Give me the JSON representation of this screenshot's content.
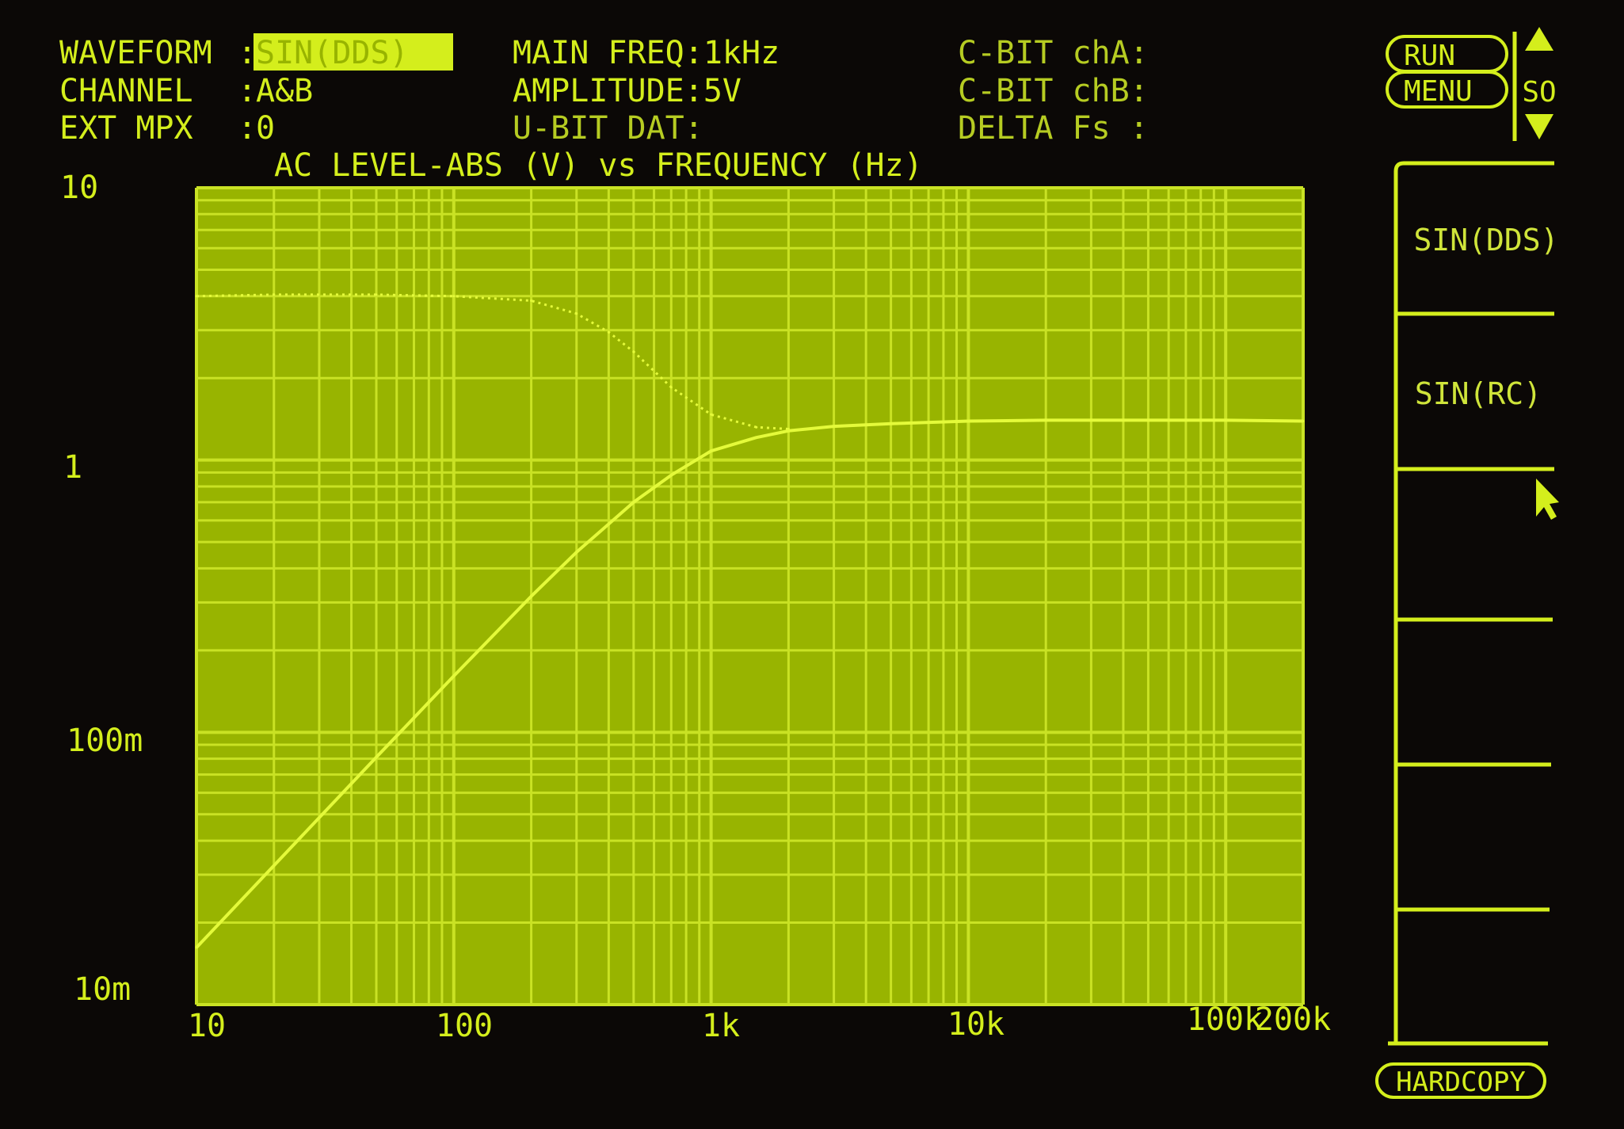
{
  "header": {
    "rows": [
      {
        "label": "WAVEFORM",
        "value": "SIN(DDS)"
      },
      {
        "label": "CHANNEL",
        "value": "A&B"
      },
      {
        "label": "EXT MPX",
        "value": "0"
      }
    ],
    "sep": ":",
    "middle": [
      "MAIN FREQ:1kHz",
      "AMPLITUDE:5V",
      "U-BIT DAT:"
    ],
    "right": [
      "C-BIT chA:",
      "C-BIT chB:",
      "DELTA Fs :"
    ]
  },
  "controls": {
    "run": "RUN",
    "menu": "MENU",
    "scroll_label": "SO",
    "hardcopy": "HARDCOPY"
  },
  "softkeys": [
    "SIN(DDS)",
    "SIN(RC)",
    "",
    "",
    "",
    ""
  ],
  "colors": {
    "phosphor": "#d4ee1c",
    "plot_bg": "#98b400",
    "grid": "#c9e224",
    "trace": "#e4fa3a",
    "background": "#0b0806"
  },
  "chart_data": {
    "type": "line",
    "title": "AC LEVEL-ABS (V) vs FREQUENCY (Hz)",
    "x_scale": "log",
    "y_scale": "log",
    "xlim": [
      10,
      200000
    ],
    "ylim": [
      0.01,
      10
    ],
    "grid": true,
    "x_tick_labels": [
      "10",
      "100",
      "1k",
      "10k",
      "100k",
      "200k"
    ],
    "x_ticks": [
      10,
      100,
      1000,
      10000,
      100000,
      200000
    ],
    "y_tick_labels": [
      "10",
      "1",
      "100m",
      "10m"
    ],
    "y_ticks": [
      10,
      1,
      0.1,
      0.01
    ],
    "series": [
      {
        "style": "solid",
        "x": [
          10,
          20,
          50,
          100,
          200,
          300,
          500,
          700,
          1000,
          1500,
          2000,
          3000,
          5000,
          10000,
          20000,
          50000,
          100000,
          200000
        ],
        "y": [
          0.0162,
          0.0324,
          0.081,
          0.161,
          0.316,
          0.459,
          0.7,
          0.88,
          1.08,
          1.21,
          1.28,
          1.33,
          1.36,
          1.39,
          1.4,
          1.4,
          1.4,
          1.39
        ]
      },
      {
        "style": "dotted",
        "x": [
          10,
          20,
          50,
          100,
          200,
          300,
          400,
          500,
          700,
          1000,
          1500,
          2000
        ],
        "y": [
          4.0,
          4.05,
          4.05,
          4.0,
          3.85,
          3.45,
          2.95,
          2.5,
          1.85,
          1.47,
          1.32,
          1.3
        ]
      }
    ]
  }
}
